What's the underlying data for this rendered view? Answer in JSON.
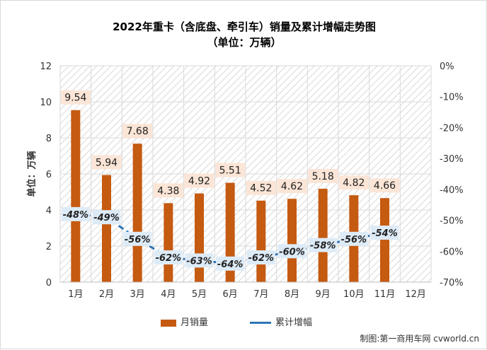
{
  "title_line1": "2022年重卡（含底盘、牵引车）销量及累计增幅走势图",
  "title_line2": "（单位：万辆）",
  "ylabel": "单位：万辆",
  "source": "制图:第一商用车网 cvworld.cn",
  "colors": {
    "bar": "#c55a11",
    "line": "#2e75b6",
    "grid": "#d9d9d9",
    "hatch": "#c8c8c8",
    "label_bg": "#fbe5d6",
    "line_label_bg": "#ddebf7"
  },
  "chart_data": {
    "type": "bar+line",
    "categories": [
      "1月",
      "2月",
      "3月",
      "4月",
      "5月",
      "6月",
      "7月",
      "8月",
      "9月",
      "10月",
      "11月",
      "12月"
    ],
    "series": [
      {
        "name": "月销量",
        "type": "bar",
        "axis": "left",
        "values": [
          9.54,
          5.94,
          7.68,
          4.38,
          4.92,
          5.51,
          4.52,
          4.62,
          5.18,
          4.82,
          4.66,
          null
        ],
        "labels": [
          "9.54",
          "5.94",
          "7.68",
          "4.38",
          "4.92",
          "5.51",
          "4.52",
          "4.62",
          "5.18",
          "4.82",
          "4.66",
          ""
        ]
      },
      {
        "name": "累计增幅",
        "type": "line",
        "axis": "right",
        "style": "dashed",
        "values": [
          -48,
          -49,
          -56,
          -62,
          -63,
          -64,
          -62,
          -60,
          -58,
          -56,
          -54,
          null
        ],
        "labels": [
          "-48%",
          "-49%",
          "-56%",
          "-62%",
          "-63%",
          "-64%",
          "-62%",
          "-60%",
          "-58%",
          "-56%",
          "-54%",
          ""
        ]
      }
    ],
    "y_left": {
      "min": 0,
      "max": 12,
      "ticks": [
        "0",
        "2",
        "4",
        "6",
        "8",
        "10",
        "12"
      ]
    },
    "y_right": {
      "min": -70,
      "max": 0,
      "ticks": [
        "0%",
        "-10%",
        "-20%",
        "-30%",
        "-40%",
        "-50%",
        "-60%",
        "-70%"
      ]
    },
    "ylabel": "单位：万辆",
    "grid": true,
    "legend_position": "bottom"
  }
}
